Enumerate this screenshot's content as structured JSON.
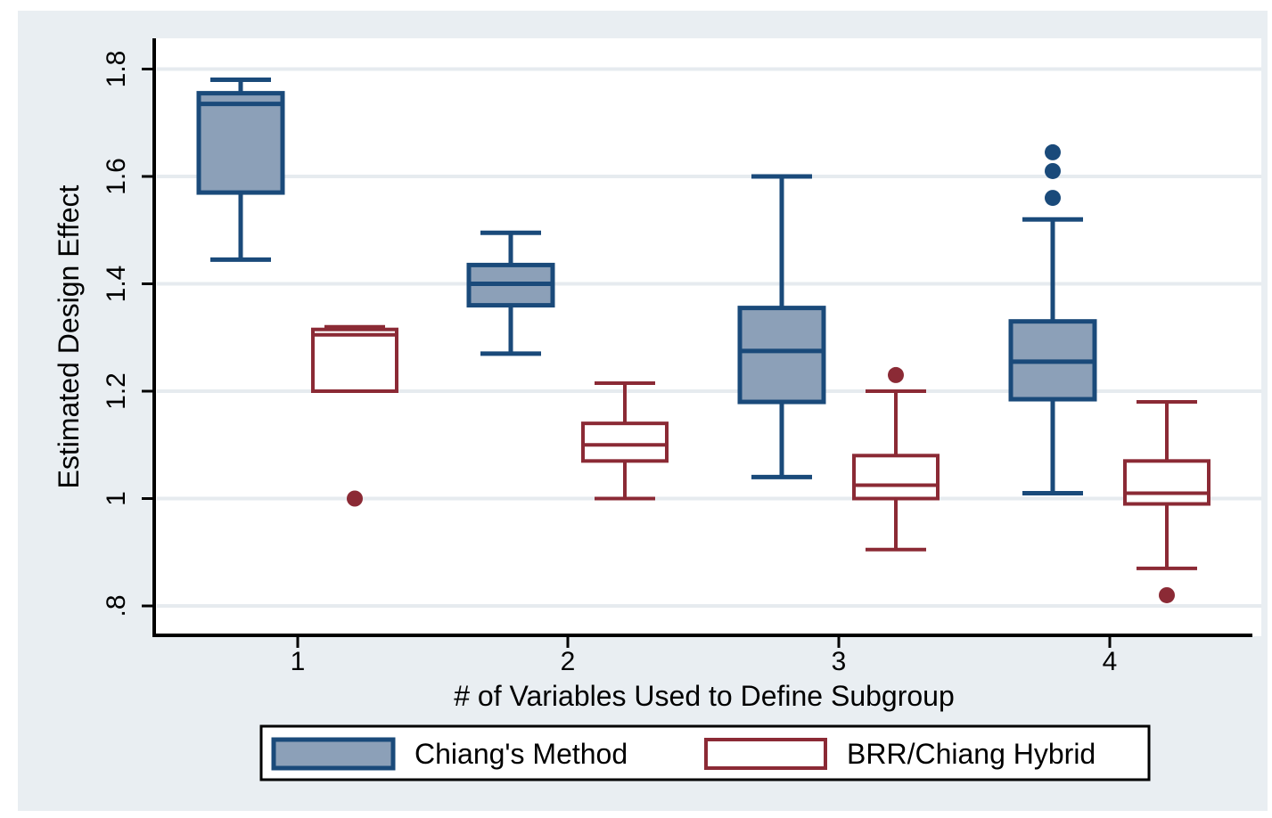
{
  "chart_data": {
    "type": "box",
    "title": "",
    "xlabel": "# of Variables Used to Define Subgroup",
    "ylabel": "Estimated Design Effect",
    "categories": [
      "1",
      "2",
      "3",
      "4"
    ],
    "y_ticks": [
      {
        "value": 0.8,
        "label": ".8"
      },
      {
        "value": 1.0,
        "label": "1"
      },
      {
        "value": 1.2,
        "label": "1.2"
      },
      {
        "value": 1.4,
        "label": "1.4"
      },
      {
        "value": 1.6,
        "label": "1.6"
      },
      {
        "value": 1.8,
        "label": "1.8"
      }
    ],
    "ylim": [
      0.77,
      1.83
    ],
    "grid": true,
    "legend_position": "bottom",
    "series": [
      {
        "name": "Chiang's Method",
        "color": "#1a4a7a",
        "fill": "#8ca0b8",
        "boxes": [
          {
            "category": "1",
            "whisker_low": 1.445,
            "q1": 1.57,
            "median": 1.735,
            "q3": 1.755,
            "whisker_high": 1.78,
            "outliers": []
          },
          {
            "category": "2",
            "whisker_low": 1.27,
            "q1": 1.36,
            "median": 1.4,
            "q3": 1.435,
            "whisker_high": 1.495,
            "outliers": []
          },
          {
            "category": "3",
            "whisker_low": 1.04,
            "q1": 1.18,
            "median": 1.275,
            "q3": 1.355,
            "whisker_high": 1.6,
            "outliers": []
          },
          {
            "category": "4",
            "whisker_low": 1.01,
            "q1": 1.185,
            "median": 1.255,
            "q3": 1.33,
            "whisker_high": 1.52,
            "outliers": [
              1.56,
              1.61,
              1.645
            ]
          }
        ]
      },
      {
        "name": "BRR/Chiang Hybrid",
        "color": "#8b2a35",
        "fill": "#ffffff",
        "boxes": [
          {
            "category": "1",
            "whisker_low": 1.2,
            "q1": 1.2,
            "median": 1.305,
            "q3": 1.315,
            "whisker_high": 1.32,
            "outliers": [
              1.0
            ]
          },
          {
            "category": "2",
            "whisker_low": 1.0,
            "q1": 1.07,
            "median": 1.1,
            "q3": 1.14,
            "whisker_high": 1.215,
            "outliers": []
          },
          {
            "category": "3",
            "whisker_low": 0.905,
            "q1": 1.0,
            "median": 1.025,
            "q3": 1.08,
            "whisker_high": 1.2,
            "outliers": [
              1.23
            ]
          },
          {
            "category": "4",
            "whisker_low": 0.87,
            "q1": 0.99,
            "median": 1.01,
            "q3": 1.07,
            "whisker_high": 1.18,
            "outliers": [
              0.82
            ]
          }
        ]
      }
    ]
  }
}
